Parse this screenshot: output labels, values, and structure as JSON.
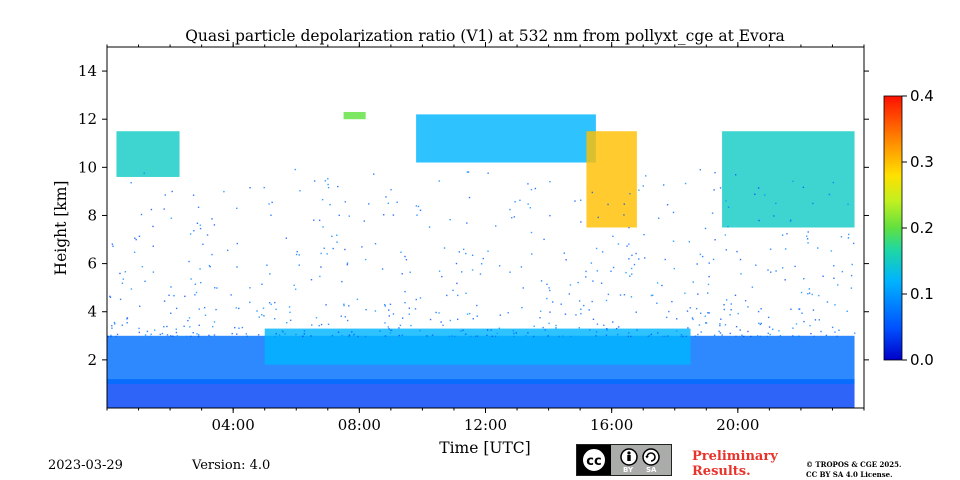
{
  "chart_data": {
    "type": "heatmap",
    "title": "Quasi particle depolarization ratio (V1) at 532 nm from pollyxt_cge at Evora",
    "xlabel": "Time [UTC]",
    "ylabel": "Height [km]",
    "x_range_hours": [
      0,
      24
    ],
    "ylim": [
      0,
      15
    ],
    "x_ticks": [
      "04:00",
      "08:00",
      "12:00",
      "16:00",
      "20:00"
    ],
    "x_tick_hours": [
      4,
      8,
      12,
      16,
      20
    ],
    "y_ticks": [
      "2",
      "4",
      "6",
      "8",
      "10",
      "12",
      "14"
    ],
    "y_tick_values": [
      2,
      4,
      6,
      8,
      10,
      12,
      14
    ],
    "colorbar": {
      "range": [
        0.0,
        0.4
      ],
      "ticks": [
        "0.0",
        "0.1",
        "0.2",
        "0.3",
        "0.4"
      ],
      "tick_values": [
        0.0,
        0.1,
        0.2,
        0.3,
        0.4
      ],
      "colormap": "jet"
    },
    "features": [
      {
        "start_hour": 0.0,
        "end_hour": 23.7,
        "bottom_km": 0.0,
        "top_km": 1.2,
        "value": 0.04
      },
      {
        "start_hour": 0.0,
        "end_hour": 23.7,
        "bottom_km": 1.0,
        "top_km": 3.0,
        "value": 0.07
      },
      {
        "start_hour": 5.0,
        "end_hour": 18.5,
        "bottom_km": 1.8,
        "top_km": 3.3,
        "value": 0.12
      },
      {
        "start_hour": 0.3,
        "end_hour": 2.3,
        "bottom_km": 9.6,
        "top_km": 11.5,
        "value": 0.15
      },
      {
        "start_hour": 7.5,
        "end_hour": 8.2,
        "bottom_km": 12.0,
        "top_km": 12.3,
        "value": 0.2
      },
      {
        "start_hour": 9.8,
        "end_hour": 15.5,
        "bottom_km": 10.2,
        "top_km": 12.2,
        "value": 0.12
      },
      {
        "start_hour": 15.2,
        "end_hour": 16.8,
        "bottom_km": 7.5,
        "top_km": 11.5,
        "value": 0.3
      },
      {
        "start_hour": 19.5,
        "end_hour": 23.7,
        "bottom_km": 7.5,
        "top_km": 11.5,
        "value": 0.15
      }
    ]
  },
  "footer": {
    "date": "2023-03-29",
    "version": "Version: 4.0",
    "preliminary_line1": "Preliminary",
    "preliminary_line2": "Results.",
    "copyright_line1": "© TROPOS & CGE 2025.",
    "copyright_line2": "CC BY SA 4.0 License.",
    "license_by": "BY",
    "license_sa": "SA",
    "license_cc": "cc"
  }
}
